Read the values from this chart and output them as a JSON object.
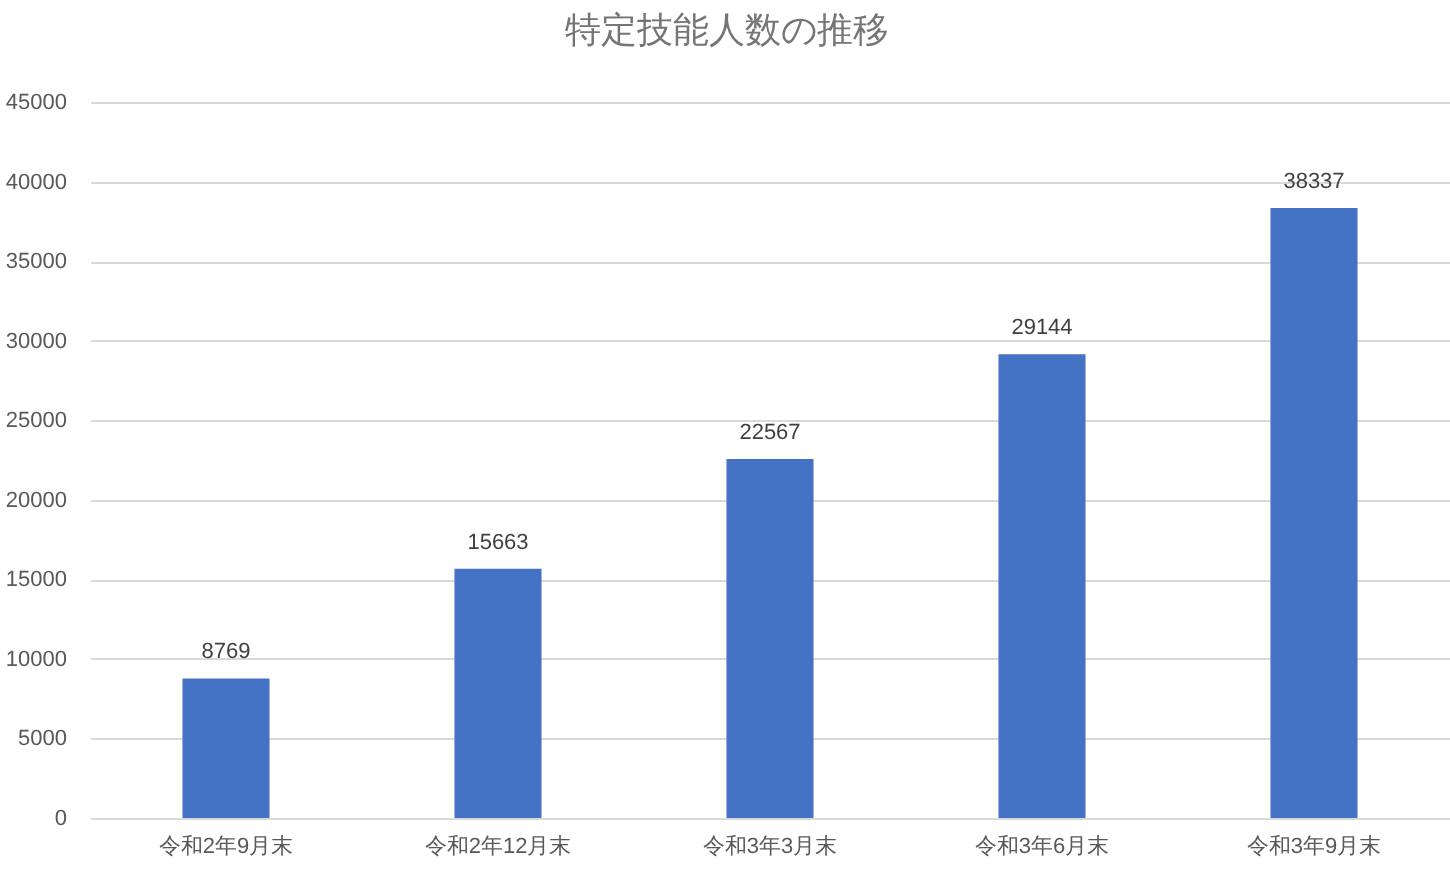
{
  "chart_data": {
    "type": "bar",
    "title": "特定技能人数の推移",
    "categories": [
      "令和2年9月末",
      "令和2年12月末",
      "令和3年3月末",
      "令和3年6月末",
      "令和3年9月末"
    ],
    "values": [
      8769,
      15663,
      22567,
      29144,
      38337
    ],
    "color": "#4472c4",
    "ylim": [
      0,
      45000
    ],
    "yticks": [
      0,
      5000,
      10000,
      15000,
      20000,
      25000,
      30000,
      35000,
      40000,
      45000
    ],
    "grid": "y",
    "data_labels": true
  }
}
